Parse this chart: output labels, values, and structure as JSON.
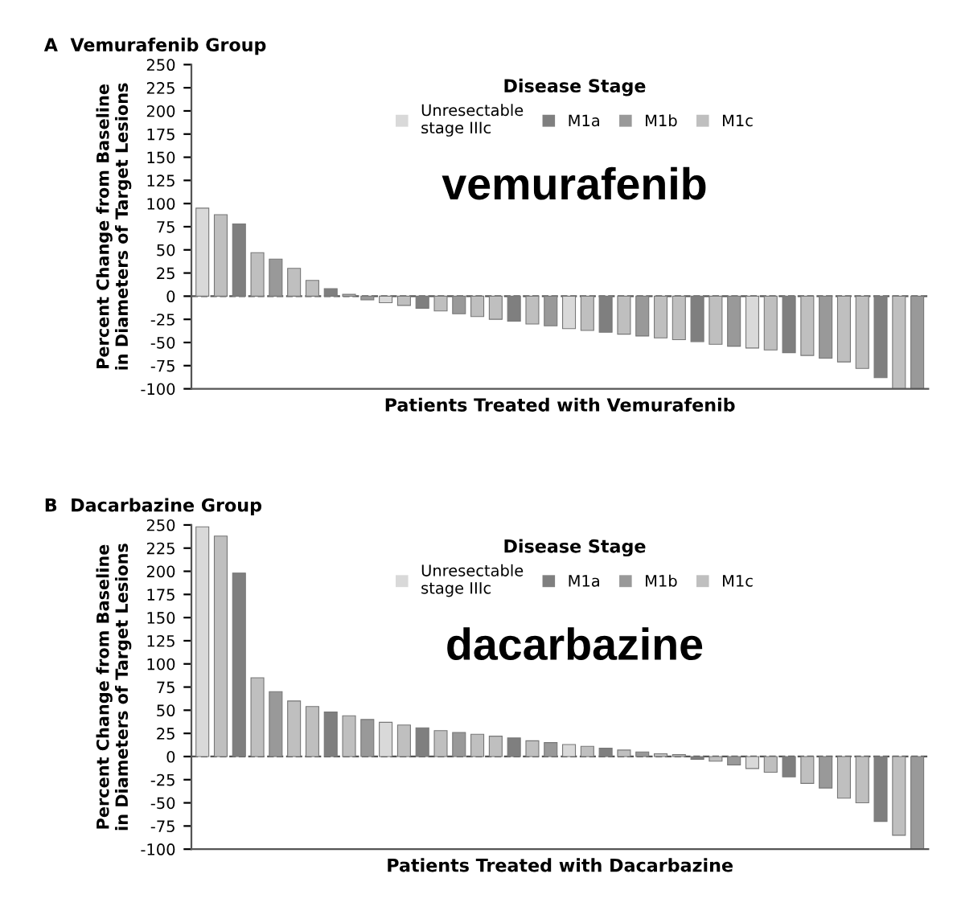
{
  "chart_data": [
    {
      "type": "bar",
      "title": "A  Vemurafenib Group",
      "xlabel": "Patients Treated with Vemurafenib",
      "ylabel": "Percent Change from Baseline\nin Diameters of Target Lesions",
      "legend_title": "Disease Stage",
      "legend": "top",
      "annotations": [
        "vemurafenib"
      ],
      "tick_labels": "y",
      "grid": false,
      "categories": [
        null,
        null,
        null,
        null,
        null,
        null,
        null,
        null,
        null,
        null,
        null,
        null,
        null,
        null,
        null,
        null,
        null,
        null,
        null,
        null,
        null,
        null,
        null,
        null,
        null,
        null,
        null,
        null,
        null,
        null,
        null,
        null,
        null,
        null,
        null,
        null,
        null,
        null,
        null,
        null
      ],
      "series": [
        {
          "name": "Unresectable\nstage IIIc",
          "color": "#d9d9d9",
          "values": [
            95,
            null,
            null,
            null,
            null,
            null,
            null,
            null,
            null,
            null,
            -7,
            null,
            null,
            null,
            null,
            null,
            null,
            null,
            null,
            null,
            -35,
            null,
            null,
            null,
            null,
            null,
            null,
            null,
            null,
            null,
            -56,
            null,
            null,
            null,
            null,
            null,
            null,
            null,
            null,
            null
          ]
        },
        {
          "name": "M1a",
          "color": "#7f7f7f",
          "values": [
            null,
            null,
            78,
            null,
            null,
            null,
            null,
            8,
            null,
            null,
            null,
            null,
            -13,
            null,
            null,
            null,
            null,
            -27,
            null,
            null,
            null,
            null,
            -39,
            null,
            null,
            null,
            null,
            -49,
            null,
            null,
            null,
            null,
            -61,
            null,
            null,
            null,
            null,
            -88,
            null,
            null
          ]
        },
        {
          "name": "M1b",
          "color": "#999999",
          "values": [
            null,
            null,
            null,
            null,
            40,
            null,
            null,
            null,
            null,
            -4,
            null,
            null,
            null,
            null,
            -19,
            null,
            null,
            null,
            null,
            -32,
            null,
            null,
            null,
            null,
            -43,
            null,
            null,
            null,
            null,
            -54,
            null,
            null,
            null,
            null,
            -67,
            null,
            null,
            null,
            null,
            -100
          ]
        },
        {
          "name": "M1c",
          "color": "#bfbfbf",
          "values": [
            null,
            88,
            null,
            47,
            null,
            30,
            17,
            null,
            2,
            null,
            null,
            -10,
            null,
            -16,
            null,
            -22,
            -25,
            null,
            -30,
            null,
            null,
            -37,
            null,
            -41,
            null,
            -45,
            -47,
            null,
            -52,
            null,
            null,
            -58,
            null,
            -64,
            null,
            -71,
            -78,
            null,
            -100,
            null
          ]
        }
      ],
      "ylim": [
        -100,
        250
      ],
      "yticks": [
        -100,
        -75,
        -50,
        -25,
        0,
        25,
        50,
        75,
        100,
        125,
        150,
        175,
        200,
        225,
        250
      ],
      "ref_lines": [
        {
          "axis": "y",
          "value": 0,
          "line_style": "dashed",
          "color": "#555555"
        }
      ]
    },
    {
      "type": "bar",
      "title": "B  Dacarbazine Group",
      "xlabel": "Patients Treated with Dacarbazine",
      "ylabel": "Percent Change from Baseline\nin Diameters of Target Lesions",
      "legend_title": "Disease Stage",
      "legend": "top",
      "annotations": [
        "dacarbazine"
      ],
      "tick_labels": "y",
      "grid": false,
      "categories": [
        null,
        null,
        null,
        null,
        null,
        null,
        null,
        null,
        null,
        null,
        null,
        null,
        null,
        null,
        null,
        null,
        null,
        null,
        null,
        null,
        null,
        null,
        null,
        null,
        null,
        null,
        null,
        null,
        null,
        null,
        null,
        null,
        null,
        null,
        null,
        null,
        null,
        null,
        null,
        null
      ],
      "series": [
        {
          "name": "Unresectable\nstage IIIc",
          "color": "#d9d9d9",
          "values": [
            248,
            null,
            null,
            null,
            null,
            null,
            null,
            null,
            null,
            null,
            37,
            null,
            null,
            null,
            null,
            null,
            null,
            null,
            null,
            null,
            13,
            null,
            null,
            null,
            null,
            null,
            null,
            null,
            null,
            null,
            -13,
            null,
            null,
            null,
            null,
            null,
            null,
            null,
            null,
            null
          ]
        },
        {
          "name": "M1a",
          "color": "#7f7f7f",
          "values": [
            null,
            null,
            198,
            null,
            null,
            null,
            null,
            48,
            null,
            null,
            null,
            null,
            31,
            null,
            null,
            null,
            null,
            20,
            null,
            null,
            null,
            null,
            9,
            null,
            null,
            null,
            null,
            -3,
            null,
            null,
            null,
            null,
            -22,
            null,
            null,
            null,
            null,
            -70,
            null,
            null
          ]
        },
        {
          "name": "M1b",
          "color": "#999999",
          "values": [
            null,
            null,
            null,
            null,
            70,
            null,
            null,
            null,
            null,
            40,
            null,
            null,
            null,
            null,
            26,
            null,
            null,
            null,
            null,
            15,
            null,
            null,
            null,
            null,
            5,
            null,
            null,
            null,
            null,
            -9,
            null,
            null,
            null,
            null,
            -34,
            null,
            null,
            null,
            null,
            -100
          ]
        },
        {
          "name": "M1c",
          "color": "#bfbfbf",
          "values": [
            null,
            238,
            null,
            85,
            null,
            60,
            54,
            null,
            44,
            null,
            null,
            34,
            null,
            28,
            null,
            24,
            22,
            null,
            17,
            null,
            null,
            11,
            null,
            7,
            null,
            3,
            2,
            null,
            -5,
            null,
            null,
            -17,
            null,
            -29,
            null,
            -45,
            -50,
            null,
            -85,
            null
          ]
        }
      ],
      "ylim": [
        -100,
        250
      ],
      "yticks": [
        -100,
        -75,
        -50,
        -25,
        0,
        25,
        50,
        75,
        100,
        125,
        150,
        175,
        200,
        225,
        250
      ],
      "ref_lines": [
        {
          "axis": "y",
          "value": 0,
          "line_style": "dashed",
          "color": "#555555"
        }
      ]
    }
  ]
}
